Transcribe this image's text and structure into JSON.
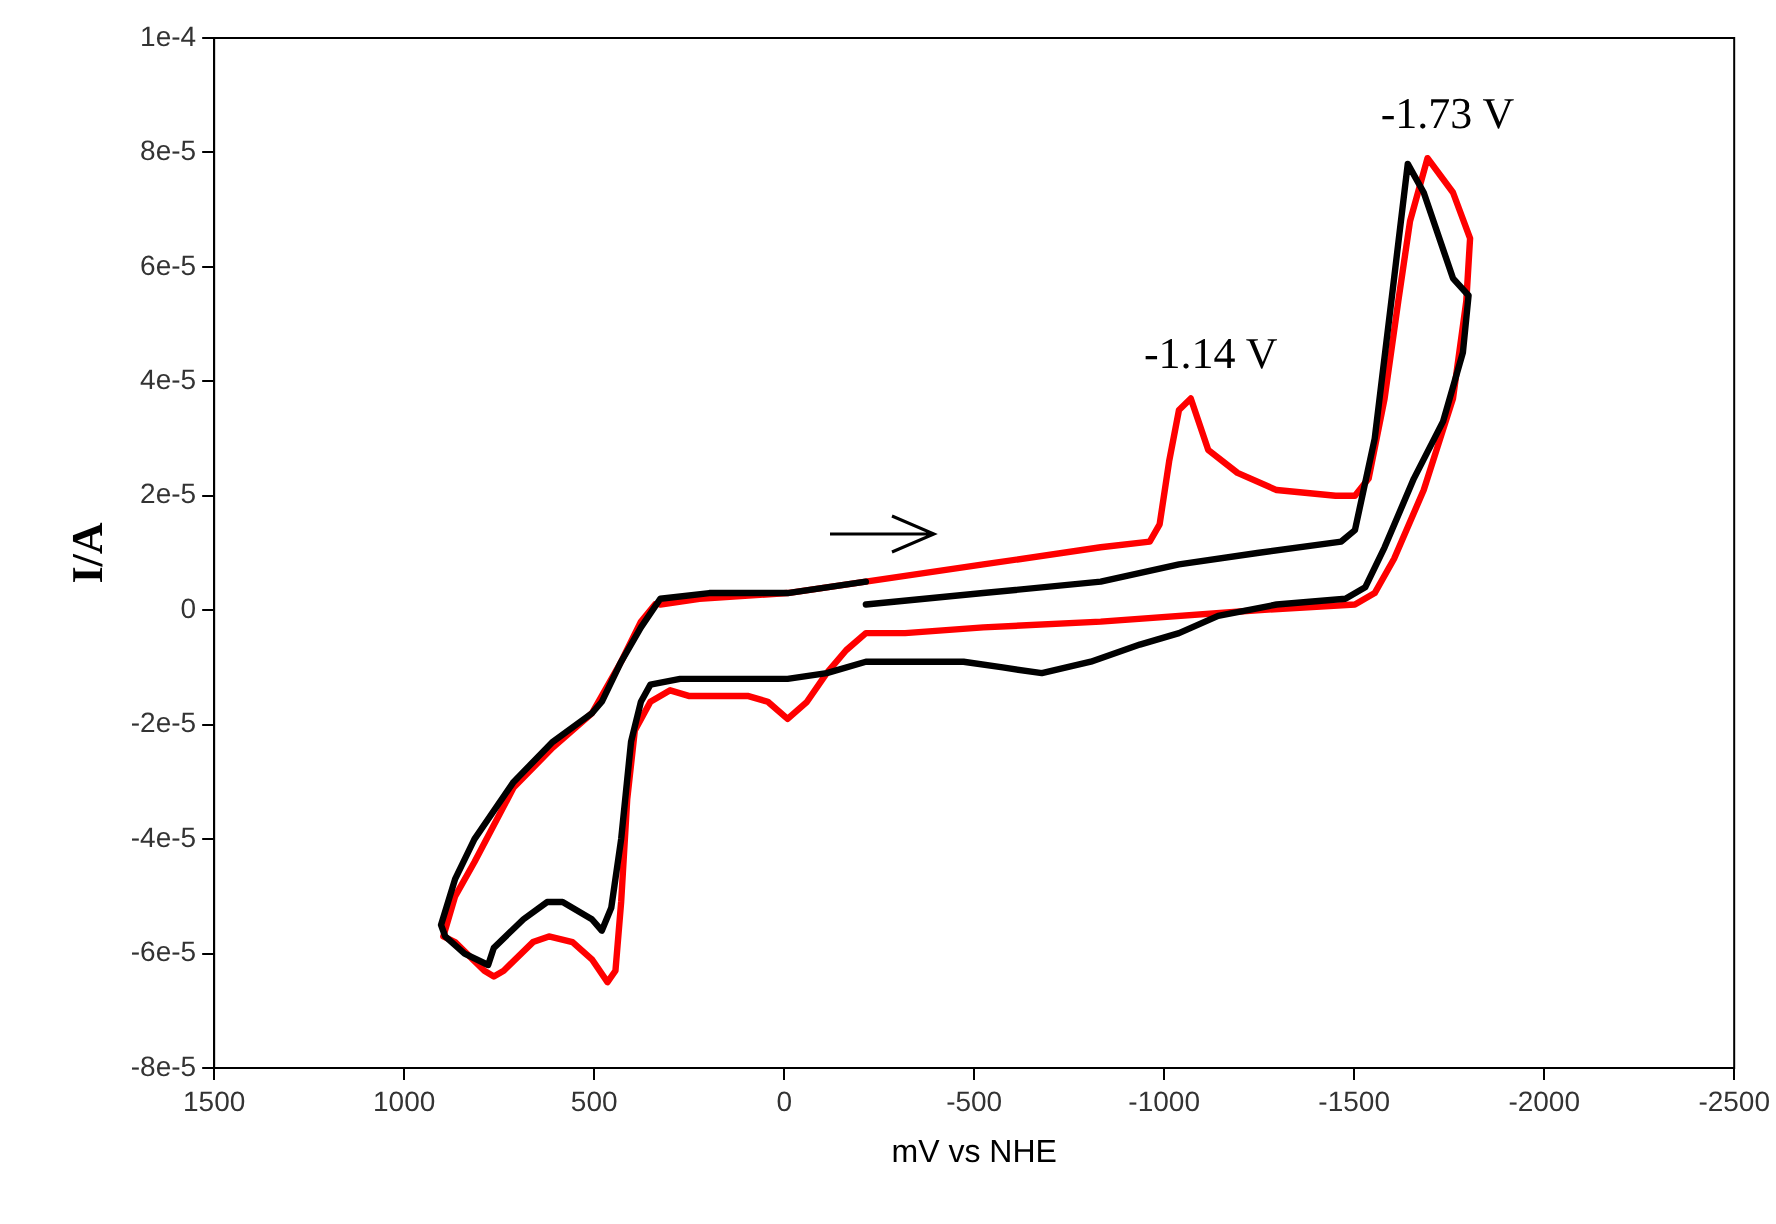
{
  "chart_data": {
    "type": "line",
    "xlabel": "mV vs NHE",
    "ylabel": "I/A",
    "xlim": [
      1500,
      -2500
    ],
    "xticks": [
      1500,
      1000,
      500,
      0,
      -500,
      -1000,
      -1500,
      -2000,
      -2500
    ],
    "ylim": [
      -8e-05,
      0.0001
    ],
    "yticks": [
      {
        "value": -8e-05,
        "label": "-8e-5"
      },
      {
        "value": -6e-05,
        "label": "-6e-5"
      },
      {
        "value": -4e-05,
        "label": "-4e-5"
      },
      {
        "value": -2e-05,
        "label": "-2e-5"
      },
      {
        "value": 0,
        "label": "0"
      },
      {
        "value": 2e-05,
        "label": "2e-5"
      },
      {
        "value": 4e-05,
        "label": "4e-5"
      },
      {
        "value": 6e-05,
        "label": "6e-5"
      },
      {
        "value": 8e-05,
        "label": "8e-5"
      },
      {
        "value": 0.0001,
        "label": "1e-4"
      }
    ],
    "grid": false,
    "legend": false,
    "marker": "none",
    "line_style": "solid",
    "annotations": [
      {
        "text": "-1.14 V",
        "x": -1070,
        "y": 3.7e-05
      },
      {
        "text": "-1.73 V",
        "x": -1693,
        "y": 7.9e-05
      }
    ],
    "series": [
      {
        "color": "#000000",
        "x": [
          -215,
          -524,
          -833,
          -1039,
          -1245,
          -1466,
          -1502,
          -1554,
          -1605,
          -1641,
          -1683,
          -1760,
          -1801,
          -1786,
          -1734,
          -1657,
          -1580,
          -1529,
          -1477,
          -1296,
          -1142,
          -1039,
          -936,
          -807,
          -678,
          -575,
          -472,
          -215,
          -112,
          -9,
          146,
          274,
          352,
          377,
          403,
          429,
          455,
          480,
          506,
          583,
          624,
          686,
          764,
          779,
          841,
          892,
          903,
          866,
          815,
          712,
          609,
          506,
          480,
          429,
          377,
          326,
          197,
          -9,
          -112,
          -215
        ],
        "values": [
          1e-06,
          3e-06,
          5e-06,
          8e-06,
          1e-05,
          1.2e-05,
          1.4e-05,
          3e-05,
          5.8e-05,
          7.8e-05,
          7.3e-05,
          5.8e-05,
          5.5e-05,
          4.5e-05,
          3.3e-05,
          2.3e-05,
          1.1e-05,
          4e-06,
          2e-06,
          1e-06,
          -1e-06,
          -4e-06,
          -6e-06,
          -9e-06,
          -1.1e-05,
          -1e-05,
          -9e-06,
          -9e-06,
          -1.1e-05,
          -1.2e-05,
          -1.2e-05,
          -1.2e-05,
          -1.3e-05,
          -1.6e-05,
          -2.3e-05,
          -4e-05,
          -5.2e-05,
          -5.6e-05,
          -5.4e-05,
          -5.1e-05,
          -5.1e-05,
          -5.4e-05,
          -5.9e-05,
          -6.2e-05,
          -6e-05,
          -5.7e-05,
          -5.5e-05,
          -4.7e-05,
          -4e-05,
          -3e-05,
          -2.3e-05,
          -1.8e-05,
          -1.6e-05,
          -9e-06,
          -3e-06,
          2e-06,
          3e-06,
          3e-06,
          4e-06,
          5e-06
        ]
      },
      {
        "color": "#ff0000",
        "x": [
          326,
          223,
          -9,
          -215,
          -524,
          -833,
          -962,
          -988,
          -1013,
          -1039,
          -1070,
          -1116,
          -1193,
          -1296,
          -1451,
          -1502,
          -1538,
          -1580,
          -1616,
          -1647,
          -1693,
          -1760,
          -1805,
          -1795,
          -1760,
          -1683,
          -1605,
          -1554,
          -1502,
          -1245,
          -833,
          -524,
          -318,
          -215,
          -163,
          -112,
          -60,
          -9,
          43,
          94,
          249,
          300,
          352,
          393,
          413,
          429,
          444,
          465,
          506,
          557,
          619,
          661,
          738,
          764,
          789,
          866,
          897,
          866,
          815,
          712,
          609,
          506,
          429,
          377,
          340
        ],
        "values": [
          1e-06,
          2e-06,
          3e-06,
          5e-06,
          8e-06,
          1.1e-05,
          1.2e-05,
          1.5e-05,
          2.6e-05,
          3.5e-05,
          3.7e-05,
          2.8e-05,
          2.4e-05,
          2.1e-05,
          2e-05,
          2e-05,
          2.3e-05,
          3.7e-05,
          5.4e-05,
          6.8e-05,
          7.9e-05,
          7.3e-05,
          6.5e-05,
          5.4e-05,
          3.7e-05,
          2.1e-05,
          9e-06,
          3e-06,
          1e-06,
          0,
          -2e-06,
          -3e-06,
          -4e-06,
          -4e-06,
          -7e-06,
          -1.1e-05,
          -1.6e-05,
          -1.9e-05,
          -1.6e-05,
          -1.5e-05,
          -1.5e-05,
          -1.4e-05,
          -1.6e-05,
          -2.1e-05,
          -3.3e-05,
          -5.1e-05,
          -6.3e-05,
          -6.5e-05,
          -6.1e-05,
          -5.8e-05,
          -5.7e-05,
          -5.8e-05,
          -6.3e-05,
          -6.4e-05,
          -6.3e-05,
          -5.8e-05,
          -5.7e-05,
          -5e-05,
          -4.4e-05,
          -3.1e-05,
          -2.4e-05,
          -1.8e-05,
          -9e-06,
          -2e-06,
          1e-06
        ]
      }
    ]
  }
}
